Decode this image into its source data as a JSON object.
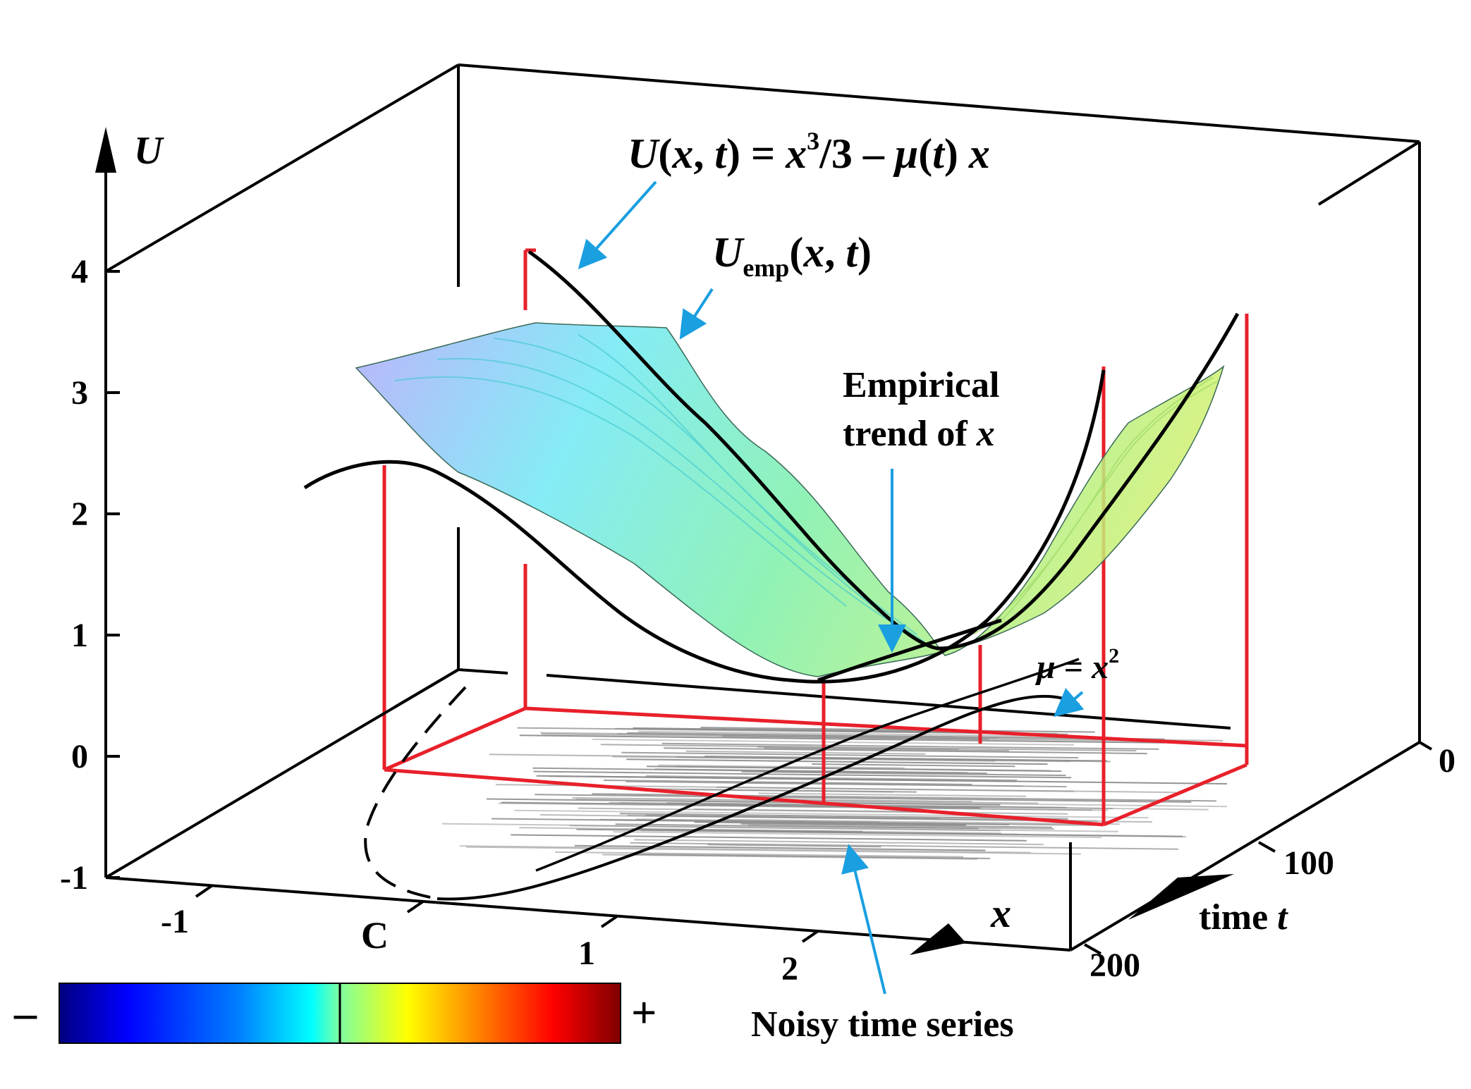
{
  "axes": {
    "u_label": "U",
    "u_ticks": [
      "4",
      "3",
      "2",
      "1",
      "0",
      "-1"
    ],
    "x_label": "x",
    "x_ticks": [
      "-1",
      "C",
      "1",
      "2"
    ],
    "t_label_prefix": "time ",
    "t_label_var": "t",
    "t_ticks": [
      "0",
      "100",
      "200"
    ]
  },
  "annotations": {
    "formula": {
      "u": "U",
      "open": "(",
      "x": "x",
      "comma": ", ",
      "t": "t",
      "close": ") = ",
      "x2": "x",
      "sup": "3",
      "div": "/3 – ",
      "mu": "μ",
      "open2": "(",
      "t2": "t",
      "close2": ") ",
      "x3": "x"
    },
    "uemp": {
      "u": "U",
      "sub": "emp",
      "open": "(",
      "x": "x",
      "comma": ", ",
      "t": "t",
      "close": ")"
    },
    "trend_line1": "Empirical",
    "trend_line2_prefix": "trend of ",
    "trend_line2_var": "x",
    "mu_eq": {
      "mu": "μ",
      "eq": " = ",
      "x": "x",
      "sup": "2"
    },
    "noisy": "Noisy time series"
  },
  "colorbar": {
    "minus": "–",
    "plus": "+",
    "stops": [
      "#00007f",
      "#0000ff",
      "#007fff",
      "#00ffff",
      "#7fff7f",
      "#ffff00",
      "#ff7f00",
      "#ff0000",
      "#7f0000"
    ]
  },
  "colors": {
    "axis": "#000000",
    "red_frame": "#e8202a",
    "arrow": "#1a9fe0",
    "surface_left": "#a9a8f8",
    "surface_mid": "#6ff0e8",
    "surface_right": "#b8f070",
    "noise": "#8c8c8c"
  }
}
